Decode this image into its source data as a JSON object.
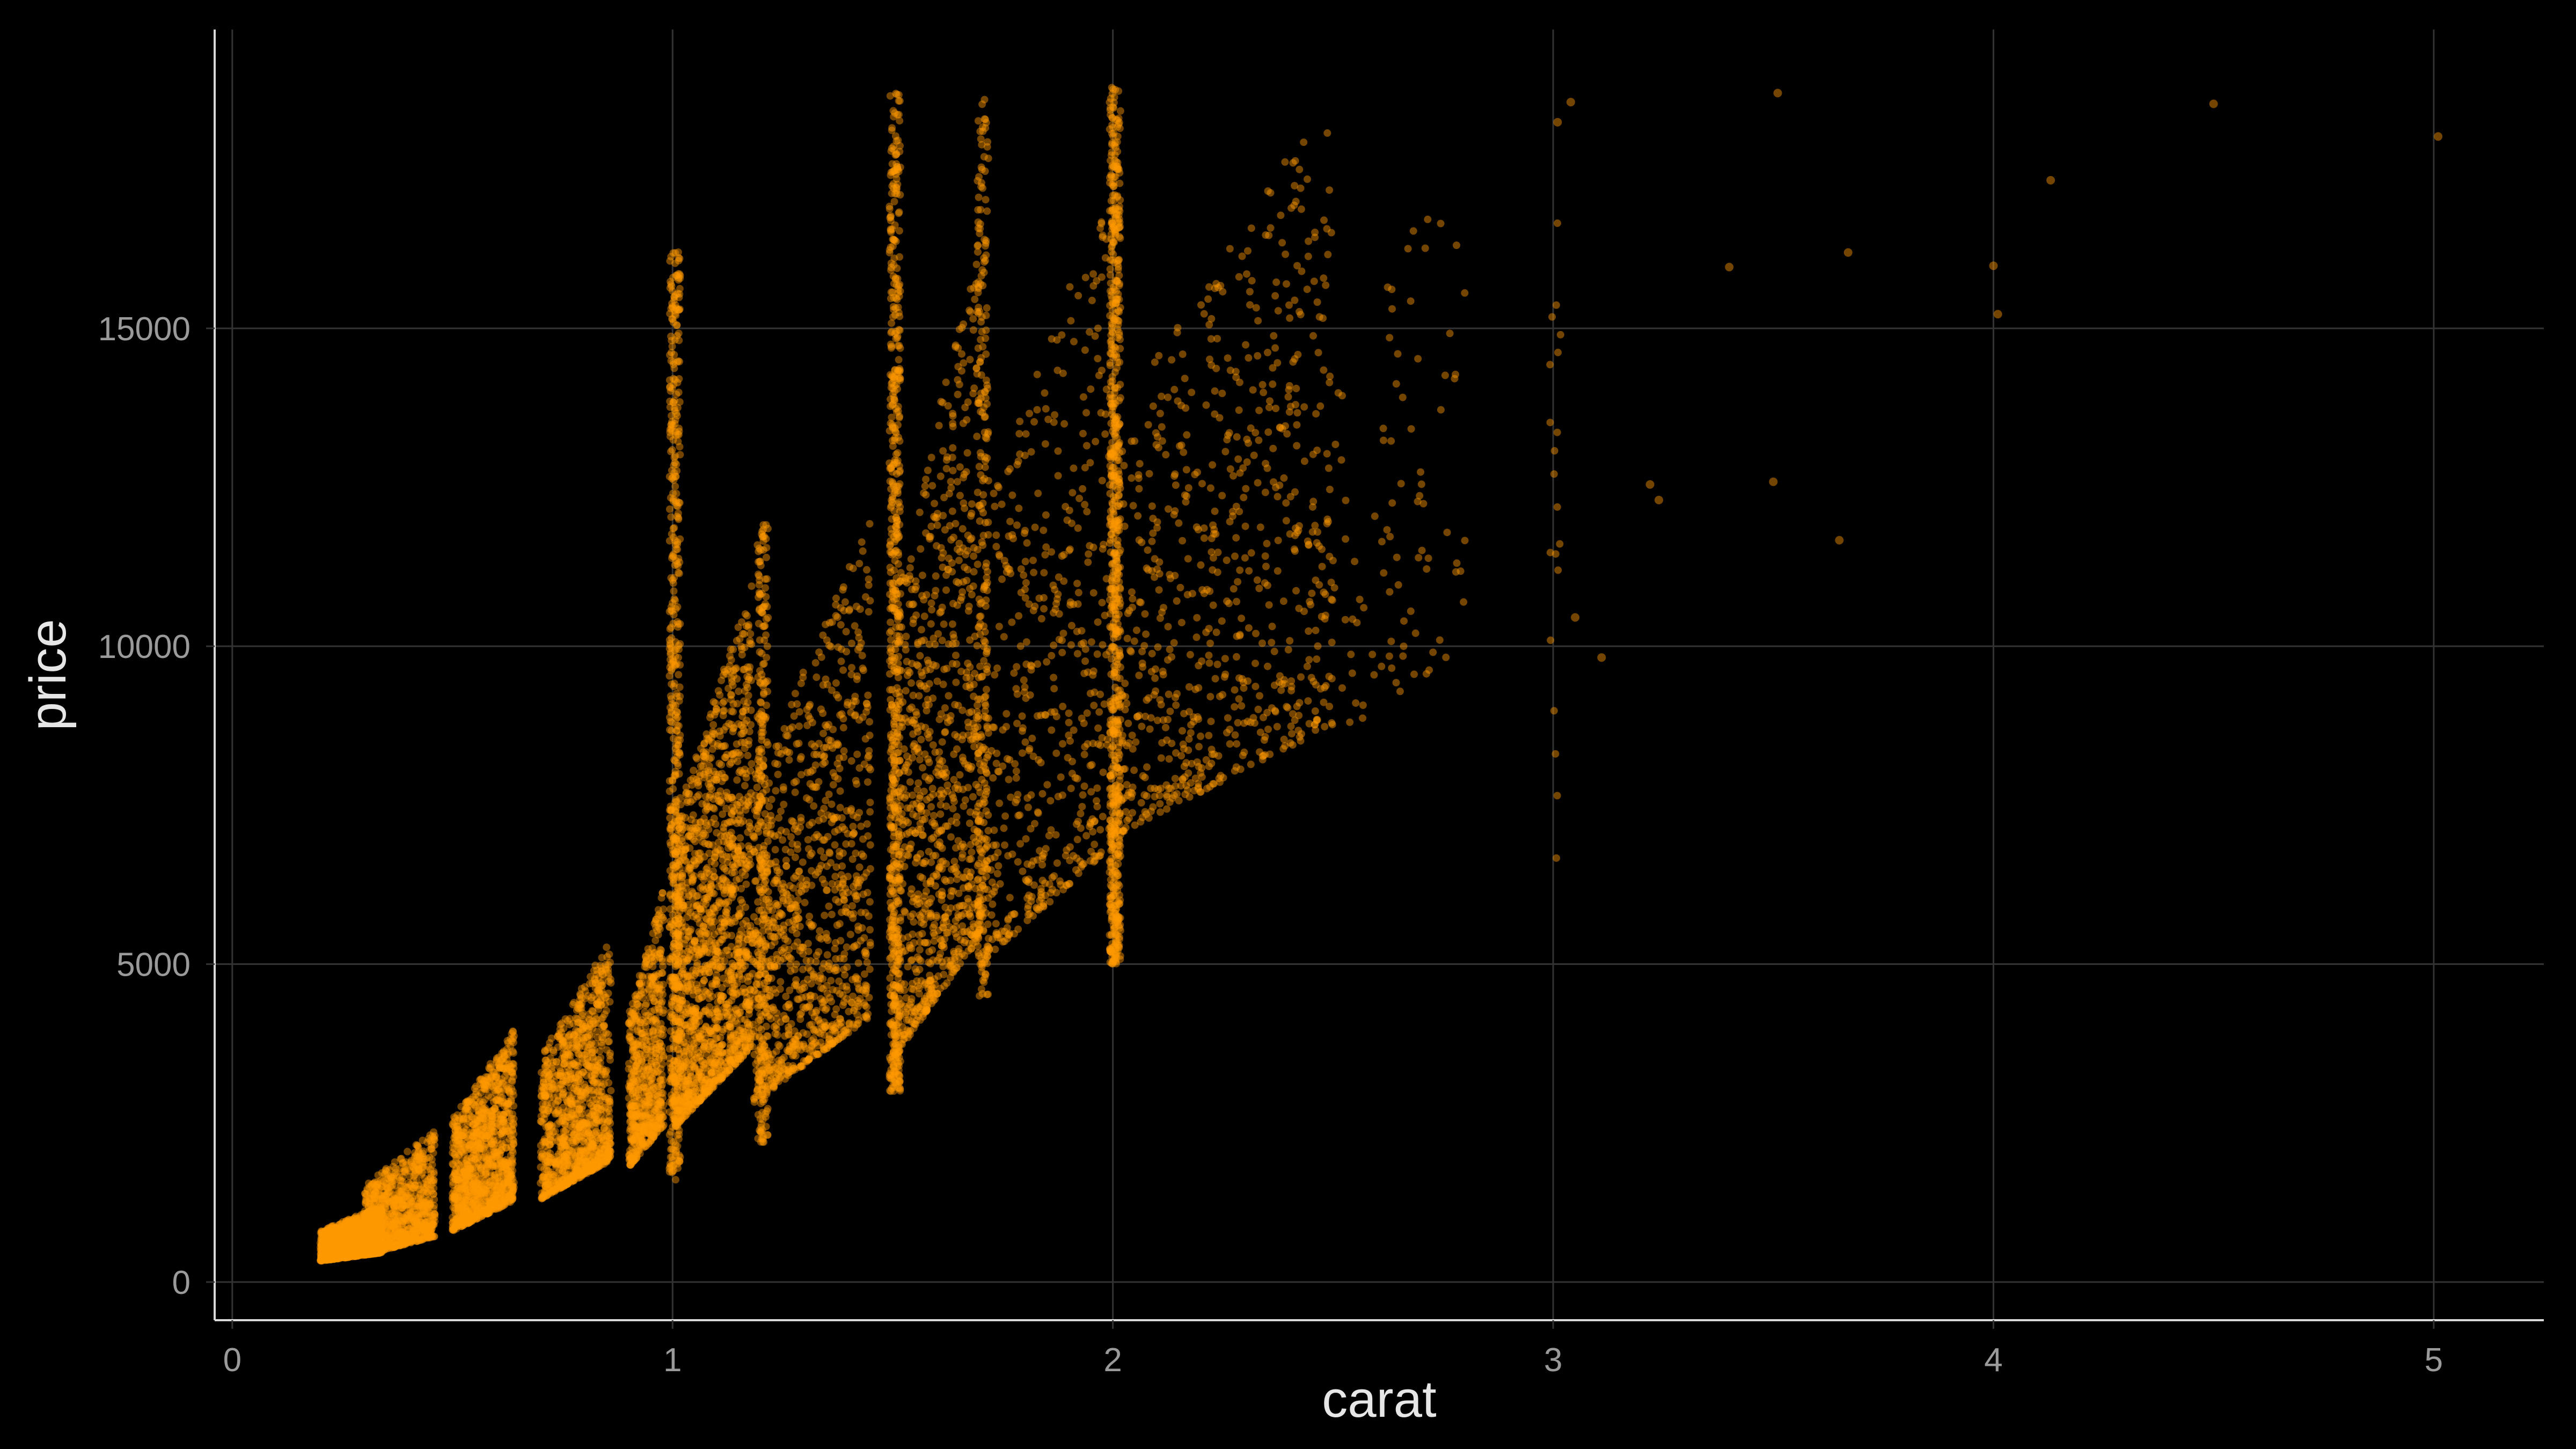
{
  "chart_data": {
    "type": "scatter",
    "title": "",
    "xlabel": "carat",
    "ylabel": "price",
    "xlim": [
      -0.04,
      5.25
    ],
    "ylim": [
      -600,
      19700
    ],
    "x_ticks": [
      0,
      1,
      2,
      3,
      4,
      5
    ],
    "x_tick_labels": [
      "0",
      "1",
      "2",
      "3",
      "4",
      "5"
    ],
    "y_ticks": [
      0,
      5000,
      10000,
      15000
    ],
    "y_tick_labels": [
      "0",
      "5000",
      "10000",
      "15000"
    ],
    "grid": true,
    "legend": "none",
    "colors": {
      "background": "#000000",
      "point": "#ff9900",
      "grid": "#333333",
      "axis": "#d9d9d9",
      "tick_text": "#9a9a9a",
      "title_text": "#e6e6e6"
    },
    "point_opacity": 0.45,
    "clusters": [
      {
        "x": [
          0.2,
          0.34
        ],
        "y": [
          330,
          1200
        ],
        "n": 1300
      },
      {
        "x": [
          0.3,
          0.46
        ],
        "y": [
          420,
          2400
        ],
        "n": 900
      },
      {
        "x": [
          0.5,
          0.64
        ],
        "y": [
          800,
          4000
        ],
        "n": 1100
      },
      {
        "x": [
          0.7,
          0.86
        ],
        "y": [
          1300,
          5400
        ],
        "n": 1100
      },
      {
        "x": [
          0.9,
          0.98
        ],
        "y": [
          1800,
          6200
        ],
        "n": 600
      },
      {
        "x": [
          1.0,
          1.18
        ],
        "y": [
          2400,
          11000
        ],
        "n": 1500
      },
      {
        "x": [
          1.18,
          1.45
        ],
        "y": [
          2800,
          12000
        ],
        "n": 1000
      },
      {
        "x": [
          1.5,
          1.7
        ],
        "y": [
          3500,
          16500
        ],
        "n": 900
      },
      {
        "x": [
          1.7,
          2.0
        ],
        "y": [
          5000,
          17500
        ],
        "n": 500
      },
      {
        "x": [
          2.0,
          2.5
        ],
        "y": [
          7000,
          18800
        ],
        "n": 700
      },
      {
        "x": [
          2.5,
          2.8
        ],
        "y": [
          8500,
          18500
        ],
        "n": 90
      }
    ],
    "stripes": [
      {
        "x": 1.0,
        "y": [
          1600,
          16200
        ],
        "n": 500
      },
      {
        "x": 1.2,
        "y": [
          2200,
          12000
        ],
        "n": 250
      },
      {
        "x": 1.5,
        "y": [
          3000,
          18700
        ],
        "n": 600
      },
      {
        "x": 1.7,
        "y": [
          4500,
          18700
        ],
        "n": 250
      },
      {
        "x": 2.0,
        "y": [
          5000,
          18800
        ],
        "n": 700
      },
      {
        "x": 3.0,
        "y": [
          6500,
          18600
        ],
        "n": 20
      }
    ],
    "outliers": [
      {
        "x": 3.01,
        "y": 18242
      },
      {
        "x": 3.04,
        "y": 18559
      },
      {
        "x": 3.05,
        "y": 10453
      },
      {
        "x": 3.11,
        "y": 9823
      },
      {
        "x": 3.22,
        "y": 12545
      },
      {
        "x": 3.24,
        "y": 12300
      },
      {
        "x": 3.4,
        "y": 15964
      },
      {
        "x": 3.5,
        "y": 12587
      },
      {
        "x": 3.51,
        "y": 18701
      },
      {
        "x": 3.65,
        "y": 11668
      },
      {
        "x": 3.67,
        "y": 16193
      },
      {
        "x": 4.0,
        "y": 15984
      },
      {
        "x": 4.01,
        "y": 15223
      },
      {
        "x": 4.13,
        "y": 17329
      },
      {
        "x": 4.5,
        "y": 18531
      },
      {
        "x": 5.01,
        "y": 18018
      }
    ]
  }
}
